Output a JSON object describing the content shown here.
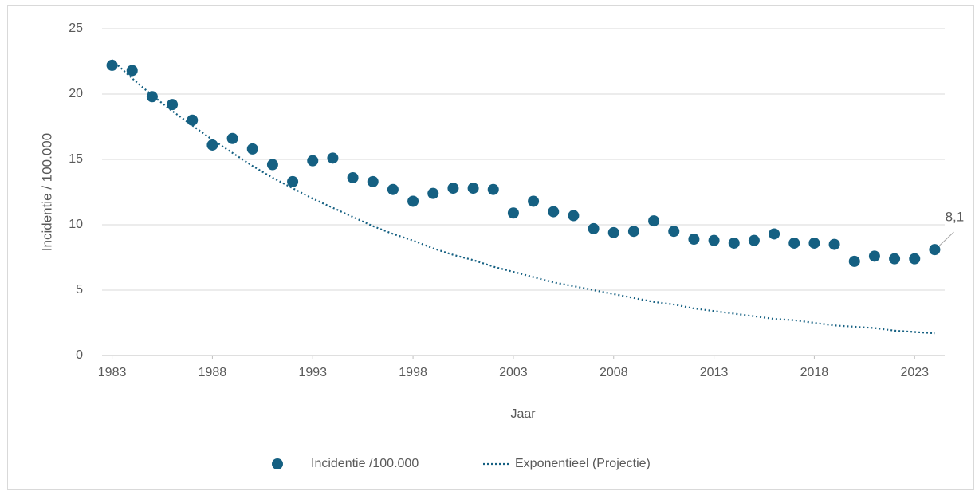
{
  "chart_data": {
    "type": "scatter",
    "x_label": "Jaar",
    "y_label": "Incidentie / 100.000",
    "x": [
      1983,
      1984,
      1985,
      1986,
      1987,
      1988,
      1989,
      1990,
      1991,
      1992,
      1993,
      1994,
      1995,
      1996,
      1997,
      1998,
      1999,
      2000,
      2001,
      2002,
      2003,
      2004,
      2005,
      2006,
      2007,
      2008,
      2009,
      2010,
      2011,
      2012,
      2013,
      2014,
      2015,
      2016,
      2017,
      2018,
      2019,
      2020,
      2021,
      2022,
      2023,
      2024
    ],
    "series": [
      {
        "name": "Incidentie /100.000",
        "color": "#156082",
        "mode": "markers",
        "values": [
          22.2,
          21.8,
          19.8,
          19.2,
          18.0,
          16.1,
          16.6,
          15.8,
          14.6,
          13.3,
          14.9,
          15.1,
          13.6,
          13.3,
          12.7,
          11.8,
          12.4,
          12.8,
          12.8,
          12.7,
          10.9,
          11.8,
          11.0,
          10.7,
          9.7,
          9.4,
          9.5,
          10.3,
          9.5,
          8.9,
          8.8,
          8.6,
          8.8,
          9.3,
          8.6,
          8.6,
          8.5,
          7.2,
          7.6,
          7.4,
          7.4,
          8.1
        ],
        "value_labels": [
          null,
          null,
          null,
          null,
          null,
          null,
          null,
          null,
          null,
          null,
          null,
          null,
          null,
          null,
          null,
          null,
          null,
          null,
          null,
          null,
          null,
          null,
          null,
          null,
          null,
          null,
          null,
          null,
          null,
          null,
          null,
          null,
          null,
          null,
          null,
          null,
          null,
          null,
          null,
          null,
          null,
          "8,1"
        ]
      },
      {
        "name": "Exponentieel (Projectie)",
        "color": "#156082",
        "mode": "dotted-line",
        "values": [
          22.6,
          21.2,
          19.9,
          18.7,
          17.6,
          16.5,
          15.5,
          14.5,
          13.6,
          12.8,
          12.0,
          11.3,
          10.6,
          9.9,
          9.3,
          8.8,
          8.2,
          7.7,
          7.3,
          6.8,
          6.4,
          6.0,
          5.6,
          5.3,
          5.0,
          4.7,
          4.4,
          4.1,
          3.9,
          3.6,
          3.4,
          3.2,
          3.0,
          2.8,
          2.7,
          2.5,
          2.3,
          2.2,
          2.1,
          1.9,
          1.8,
          1.7
        ]
      }
    ],
    "xlim": [
      1982.5,
      2024.5
    ],
    "xticks": [
      1983,
      1988,
      1993,
      1998,
      2003,
      2008,
      2013,
      2018,
      2023
    ],
    "ylim": [
      0,
      25
    ],
    "yticks": [
      0,
      5,
      10,
      15,
      20,
      25
    ],
    "grid": true,
    "legend": "bottom"
  }
}
